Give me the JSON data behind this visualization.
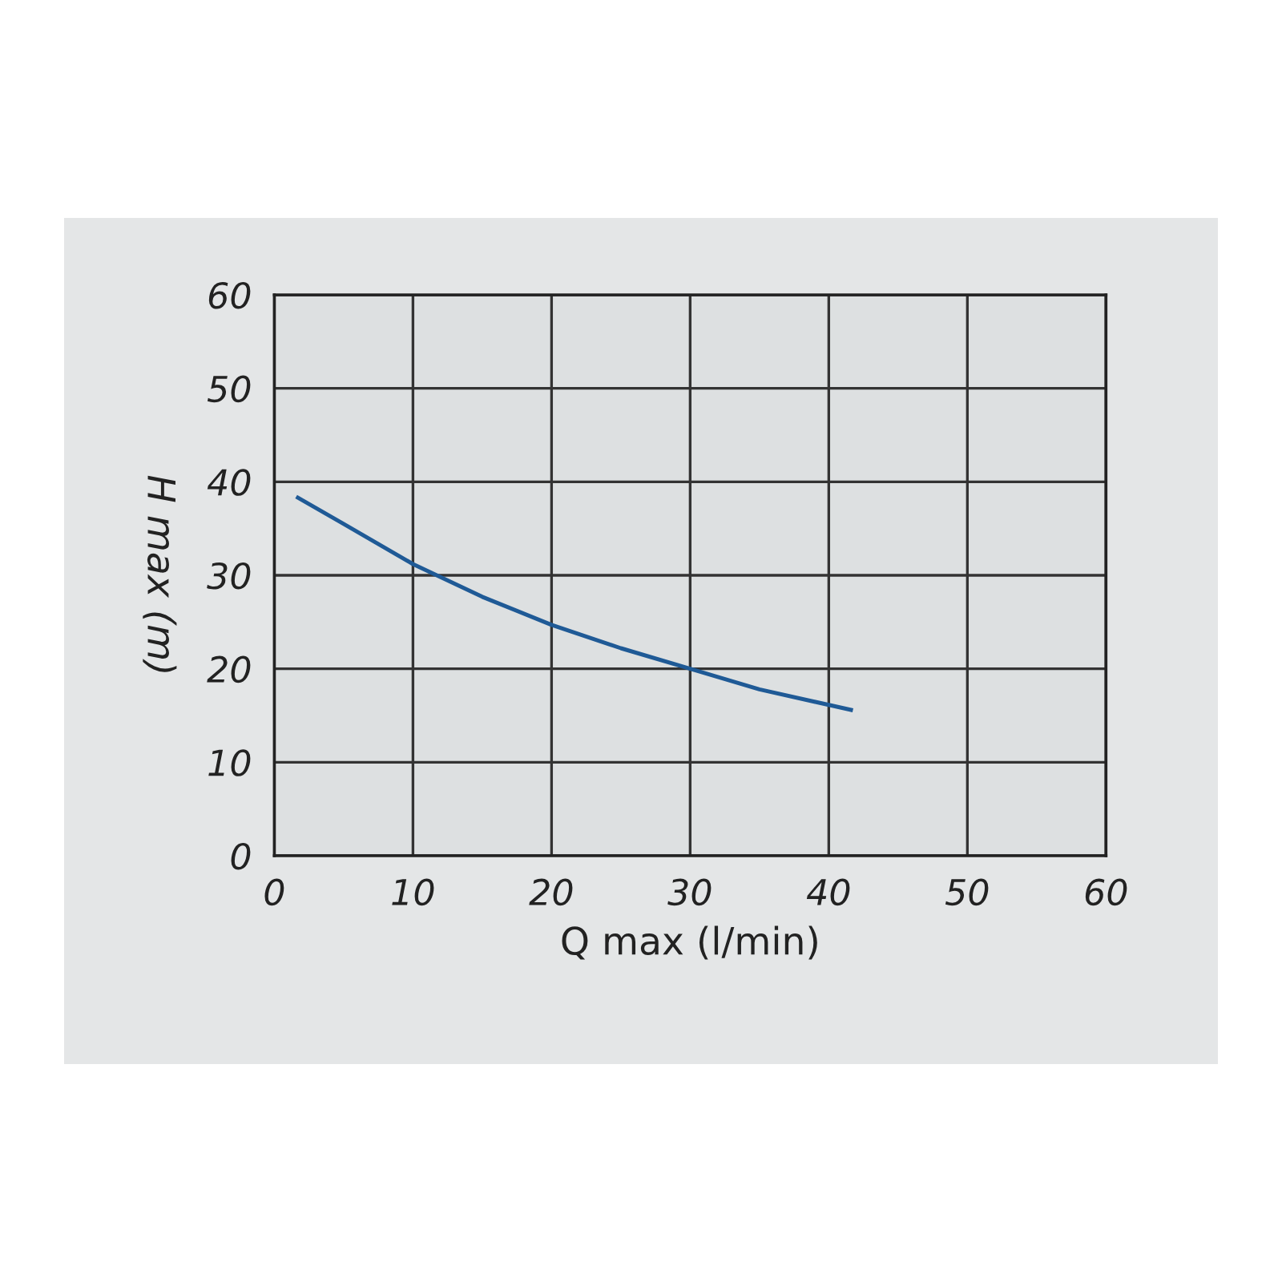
{
  "chart_data": {
    "type": "line",
    "xlabel": "Q max (l/min)",
    "ylabel": "H max (m)",
    "x": [
      1.7,
      5,
      10,
      15,
      20,
      25,
      30,
      35,
      41.6
    ],
    "series": [
      {
        "color": "#1f5a96",
        "values": [
          38.3,
          35.5,
          31.2,
          27.7,
          24.7,
          22.2,
          20.0,
          17.8,
          15.6
        ]
      }
    ],
    "xlim": [
      0,
      60
    ],
    "ylim": [
      0,
      60
    ],
    "xticks": [
      0,
      10,
      20,
      30,
      40,
      50,
      60
    ],
    "yticks": [
      0,
      10,
      20,
      30,
      40,
      50,
      60
    ],
    "grid": true,
    "marker": "none",
    "line_style": "solid"
  }
}
